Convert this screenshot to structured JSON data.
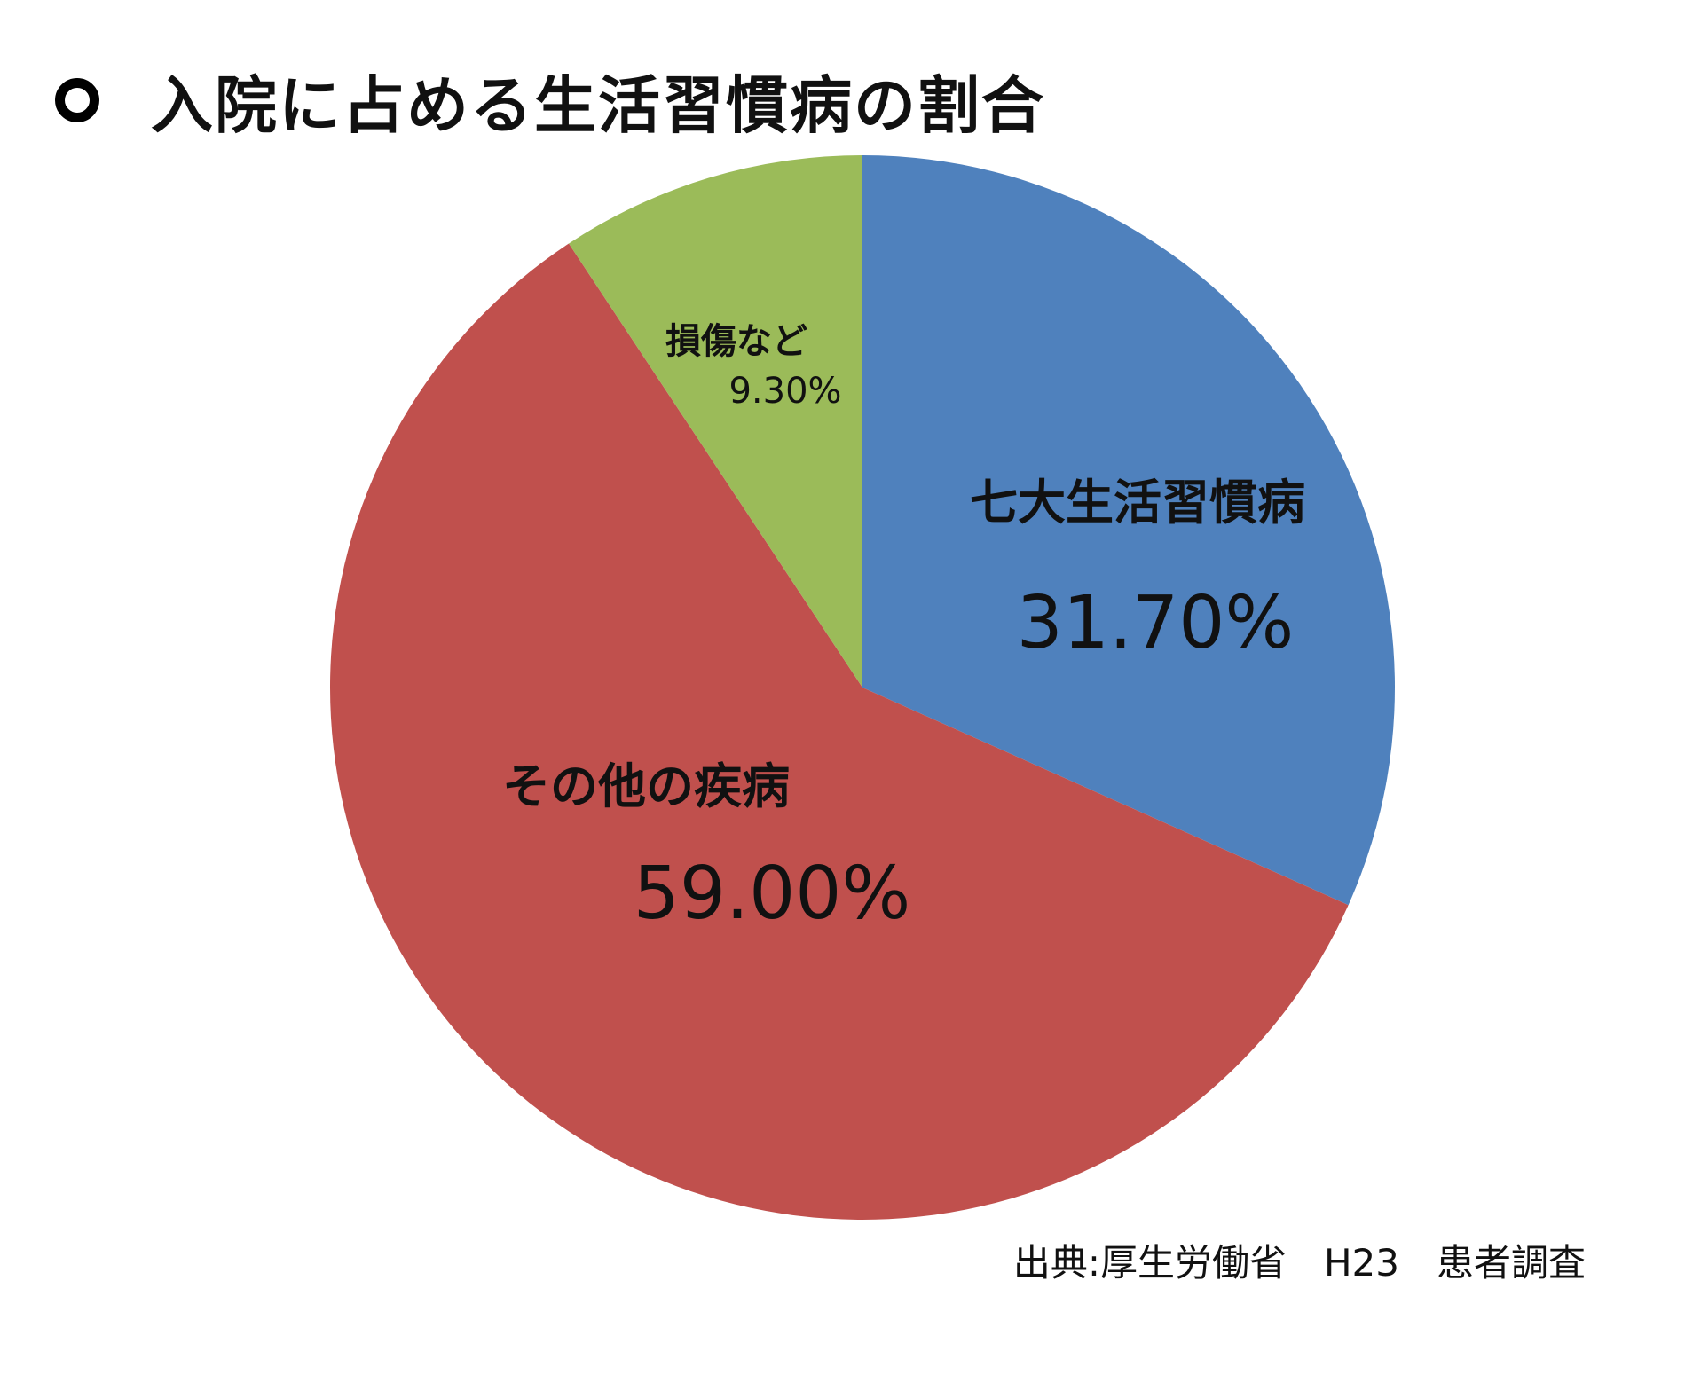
{
  "title": {
    "marker": "circle-outline",
    "text": "入院に占める生活習慣病の割合"
  },
  "chart_data": {
    "type": "pie",
    "title": "入院に占める生活習慣病の割合",
    "start_angle_deg": 0,
    "direction": "clockwise",
    "slices": [
      {
        "label": "七大生活習慣病",
        "value": 31.7,
        "value_label": "31.70%",
        "color": "#4F81BD"
      },
      {
        "label": "その他の疾病",
        "value": 59.0,
        "value_label": "59.00%",
        "color": "#C0504D"
      },
      {
        "label": "損傷など",
        "value": 9.3,
        "value_label": "9.30%",
        "color": "#9BBB59"
      }
    ]
  },
  "source": {
    "text": "出典:厚生労働省　H23　患者調査"
  }
}
